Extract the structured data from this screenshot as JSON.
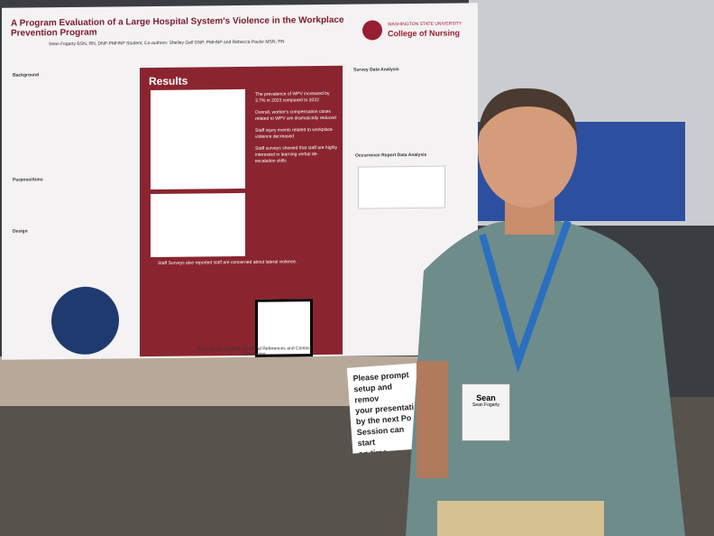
{
  "poster": {
    "title": "A Program Evaluation of a Large Hospital System's Violence in the Workplace Prevention Program",
    "authors": "Sean Fogarty BSN, RN, DNP-PMHNP Student; Co-authors: Shelley Gelf DNP, PMHNP and Rebecca Paulsr MSN, RN",
    "institution": "WASHINGTON STATE UNIVERSITY",
    "college": "College of Nursing",
    "left_headings": [
      "Background",
      "Purpose/Aims",
      "Design"
    ],
    "results_heading": "Results",
    "results_bullets": [
      "The prevalence of WPV increased by 3.7% in 2023 compared to 2022",
      "Overall, worker's compensation cases related to WPV are dramatically reduced",
      "Staff injury events related to workplace violence decreased",
      "Staff surveys showed that staff are highly interested in learning verbal de-escalation skills"
    ],
    "results_footer": "Staff Surveys also reported staff are concerned about lateral violence.",
    "qr_caption": "Scan the QR Code to Download References and Contact Information",
    "right_headings": [
      "Survey Data Analysis",
      "Occurrence Report Data Analysis"
    ]
  },
  "sign": {
    "lines": [
      "Please prompt",
      "setup and remov",
      "your presentati",
      "by the next Po",
      "Session can start",
      "on time."
    ]
  },
  "badge": {
    "name": "Sean",
    "full_name": "Sean Fogarty"
  }
}
